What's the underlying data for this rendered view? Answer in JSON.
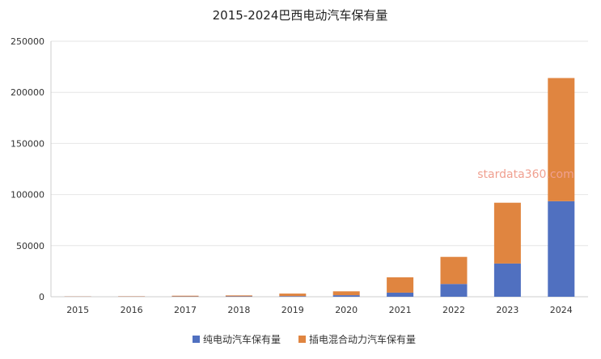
{
  "chart_data": {
    "type": "bar",
    "stacked": true,
    "title": "2015-2024巴西电动汽车保有量",
    "categories": [
      "2015",
      "2016",
      "2017",
      "2018",
      "2019",
      "2020",
      "2021",
      "2022",
      "2023",
      "2024"
    ],
    "series": [
      {
        "name": "纯电动汽车保有量",
        "color": "#5070c0",
        "values": [
          150,
          200,
          300,
          400,
          600,
          1500,
          4000,
          12500,
          32500,
          93500
        ]
      },
      {
        "name": "插电混合动力汽车保有量",
        "color": "#e08540",
        "values": [
          200,
          300,
          700,
          900,
          2500,
          3800,
          15000,
          26500,
          59500,
          120500
        ]
      }
    ],
    "ylim": [
      0,
      250000
    ],
    "yticks": [
      0,
      50000,
      100000,
      150000,
      200000,
      250000
    ],
    "grid": true,
    "legend_position": "bottom"
  },
  "watermark": "stardata360.com"
}
